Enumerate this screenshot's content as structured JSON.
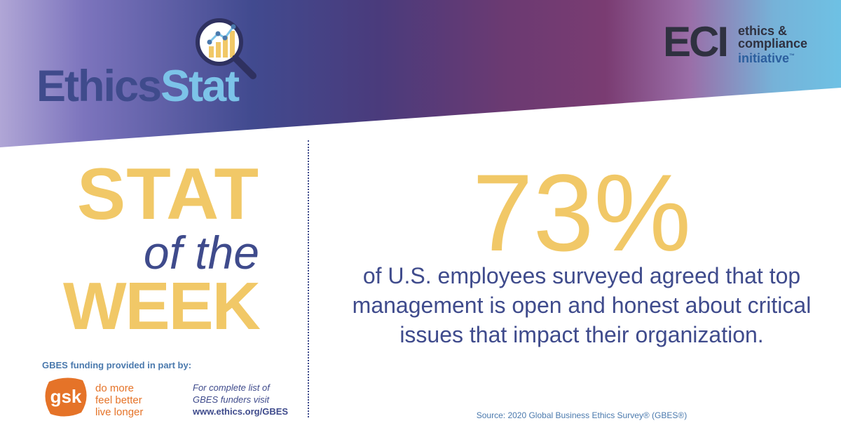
{
  "header": {
    "logo": {
      "part1": "Ethics",
      "part2": "Stat",
      "icon": "magnifier-chart-icon"
    },
    "partner": {
      "letters": "ECI",
      "line1": "ethics &",
      "line2": "compliance",
      "line3": "initiative",
      "tm": "™"
    }
  },
  "feature": {
    "line1": "STAT",
    "line2": "of the",
    "line3": "WEEK"
  },
  "statistic": {
    "value": "73%",
    "description": "of U.S. employees surveyed agreed that top management is open and honest about critical issues that impact their organization.",
    "source": "Source: 2020 Global Business Ethics Survey® (GBES®)"
  },
  "sponsor": {
    "funding_label": "GBES funding provided in part by:",
    "logo_text": "gsk",
    "tagline": [
      "do more",
      "feel better",
      "live longer"
    ],
    "note_line1": "For complete list of",
    "note_line2": "GBES funders visit",
    "url": "www.ethics.org/GBES"
  },
  "colors": {
    "gold": "#f1c867",
    "navy": "#3f4b8c",
    "light_blue": "#7cc3e8",
    "gsk_orange": "#e57328"
  }
}
